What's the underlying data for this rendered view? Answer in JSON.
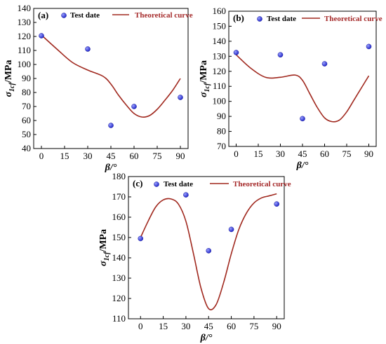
{
  "colors": {
    "curve": "#a0281e",
    "point": "#2228c8",
    "axis": "#000000"
  },
  "chart_data": [
    {
      "type": "scatter",
      "panel": "(a)",
      "xlabel": "β/°",
      "ylabel_main": "σ",
      "ylabel_sub": "1cf",
      "ylabel_unit": "/MPa",
      "xlim": [
        -5,
        95
      ],
      "ylim": [
        40,
        140
      ],
      "xticks": [
        0,
        15,
        30,
        45,
        60,
        75,
        90
      ],
      "yticks": [
        40,
        50,
        60,
        70,
        80,
        90,
        100,
        110,
        120,
        130,
        140
      ],
      "legend": {
        "points_label": "Test date",
        "curve_label": "Theoretical curve"
      },
      "series": [
        {
          "name": "Test date",
          "kind": "points",
          "x": [
            0,
            30,
            45,
            60,
            90
          ],
          "y": [
            120.5,
            111,
            56.5,
            70,
            76.5
          ]
        },
        {
          "name": "Theoretical curve",
          "kind": "curve",
          "x": [
            0,
            10,
            20,
            30,
            40,
            45,
            50,
            55,
            60,
            65,
            70,
            75,
            80,
            85,
            90
          ],
          "y": [
            121,
            111,
            101.5,
            96,
            91.5,
            86,
            78,
            71,
            65,
            62.5,
            63.5,
            68,
            74.5,
            81.5,
            90
          ]
        }
      ]
    },
    {
      "type": "scatter",
      "panel": "(b)",
      "xlabel": "β/°",
      "ylabel_main": "σ",
      "ylabel_sub": "1cf",
      "ylabel_unit": "/MPa",
      "xlim": [
        -5,
        95
      ],
      "ylim": [
        70,
        160
      ],
      "xticks": [
        0,
        15,
        30,
        45,
        60,
        75,
        90
      ],
      "yticks": [
        70,
        80,
        90,
        100,
        110,
        120,
        130,
        140,
        150,
        160
      ],
      "legend": {
        "points_label": "Test date",
        "curve_label": "Theoretical curve"
      },
      "series": [
        {
          "name": "Test date",
          "kind": "points",
          "x": [
            0,
            30,
            45,
            60,
            90
          ],
          "y": [
            132.5,
            131,
            88.5,
            125,
            136.5
          ]
        },
        {
          "name": "Theoretical curve",
          "kind": "curve",
          "x": [
            0,
            10,
            20,
            30,
            40,
            45,
            50,
            55,
            60,
            65,
            70,
            75,
            80,
            85,
            90
          ],
          "y": [
            131,
            122,
            116,
            116,
            117.5,
            114,
            105,
            96,
            89,
            86.5,
            87.5,
            93,
            101,
            109,
            117
          ]
        }
      ]
    },
    {
      "type": "scatter",
      "panel": "(c)",
      "xlabel": "β/°",
      "ylabel_main": "σ",
      "ylabel_sub": "1cf",
      "ylabel_unit": "/MPa",
      "xlim": [
        -8,
        95
      ],
      "ylim": [
        110,
        180
      ],
      "xticks": [
        0,
        15,
        30,
        45,
        60,
        75,
        90
      ],
      "yticks": [
        110,
        120,
        130,
        140,
        150,
        160,
        170,
        180
      ],
      "legend": {
        "points_label": "Test date",
        "curve_label": "Theoretical curve"
      },
      "series": [
        {
          "name": "Test date",
          "kind": "points",
          "x": [
            0,
            30,
            45,
            60,
            90
          ],
          "y": [
            149.5,
            171,
            143.5,
            154,
            166.5
          ]
        },
        {
          "name": "Theoretical curve",
          "kind": "curve",
          "x": [
            0,
            5,
            10,
            15,
            20,
            25,
            30,
            35,
            40,
            45,
            50,
            55,
            60,
            65,
            70,
            75,
            80,
            85,
            90
          ],
          "y": [
            150,
            158,
            165,
            168.5,
            169,
            166.5,
            158,
            142,
            125,
            115,
            117,
            128,
            142,
            154,
            162,
            167,
            169.5,
            170.5,
            171.5
          ]
        }
      ]
    }
  ]
}
